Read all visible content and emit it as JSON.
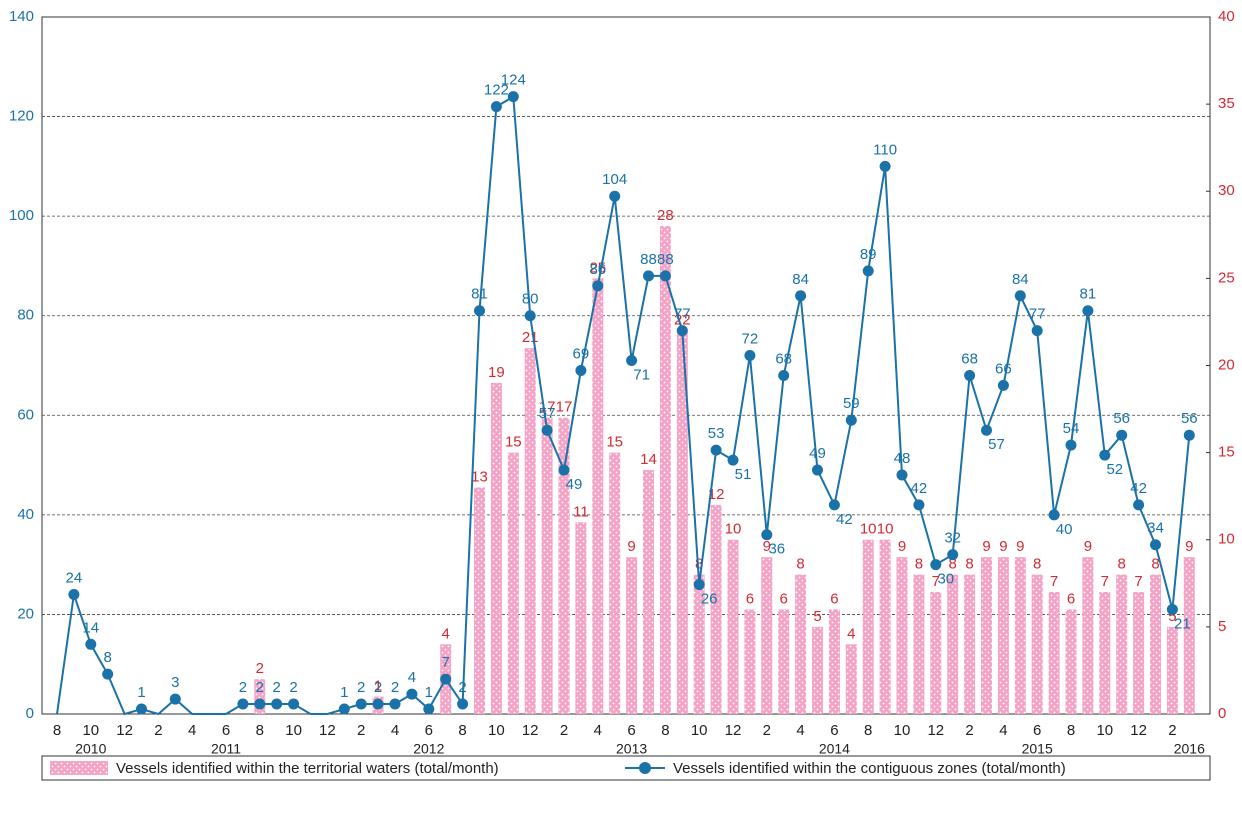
{
  "chart_data": {
    "type": "combo",
    "categories": [
      "8",
      null,
      "10",
      null,
      "12",
      null,
      "2",
      null,
      "4",
      null,
      "6",
      null,
      "8",
      null,
      "10",
      null,
      "12",
      null,
      "2",
      null,
      "4",
      null,
      "6",
      null,
      "8",
      null,
      "10",
      null,
      "12",
      null,
      "2",
      null,
      "4",
      null,
      "6",
      null,
      "8",
      null,
      "10",
      null,
      "12",
      null,
      "2",
      null,
      "4",
      null,
      "6",
      null,
      "8",
      null,
      "10",
      null,
      "12",
      null,
      "2",
      null,
      "4",
      null,
      "6",
      null,
      "8",
      null,
      "10",
      null,
      "12",
      null,
      "2",
      null
    ],
    "year_categories": [
      null,
      null,
      "2010",
      null,
      null,
      null,
      null,
      null,
      null,
      null,
      "2011",
      null,
      null,
      null,
      null,
      null,
      null,
      null,
      null,
      null,
      null,
      null,
      "2012",
      null,
      null,
      null,
      null,
      null,
      null,
      null,
      null,
      null,
      null,
      null,
      "2013",
      null,
      null,
      null,
      null,
      null,
      null,
      null,
      null,
      null,
      null,
      null,
      "2014",
      null,
      null,
      null,
      null,
      null,
      null,
      null,
      null,
      null,
      null,
      null,
      "2015",
      null,
      null,
      null,
      null,
      null,
      null,
      null,
      null,
      "2016"
    ],
    "series": [
      {
        "name": "Vessels identified within the territorial waters (total/month)",
        "type": "bar",
        "axis": "y2",
        "color": "#f4a3c6",
        "label_color": "#d42a32",
        "values": [
          0,
          0,
          0,
          0,
          0,
          0,
          0,
          0,
          0,
          0,
          0,
          0,
          2,
          0,
          0,
          0,
          0,
          0,
          0,
          1,
          0,
          0,
          0,
          4,
          0,
          13,
          19,
          15,
          21,
          17,
          17,
          11,
          25,
          15,
          9,
          14,
          28,
          22,
          8,
          12,
          10,
          6,
          9,
          6,
          8,
          5,
          6,
          4,
          10,
          10,
          9,
          8,
          7,
          8,
          8,
          9,
          9,
          9,
          8,
          7,
          6,
          9,
          7,
          8,
          7,
          8,
          5,
          9
        ]
      },
      {
        "name": "Vessels identified within the contiguous zones (total/month)",
        "type": "line",
        "color": "#1a72a8",
        "label_color": "#1a72a8",
        "values": [
          0,
          24,
          14,
          8,
          0,
          1,
          0,
          3,
          0,
          0,
          0,
          2,
          2,
          2,
          2,
          0,
          0,
          1,
          2,
          2,
          2,
          4,
          1,
          7,
          2,
          81,
          122,
          124,
          80,
          57,
          49,
          69,
          86,
          104,
          71,
          88,
          88,
          77,
          26,
          53,
          51,
          72,
          36,
          68,
          84,
          49,
          42,
          59,
          89,
          110,
          48,
          42,
          30,
          32,
          68,
          57,
          66,
          84,
          77,
          40,
          54,
          81,
          52,
          56,
          42,
          34,
          21,
          56
        ]
      }
    ],
    "ylim": [
      0,
      140
    ],
    "yticks": [
      0,
      20,
      40,
      60,
      80,
      100,
      120,
      140
    ],
    "ytick_color": "#1a72a8",
    "y2lim": [
      0,
      40
    ],
    "y2ticks": [
      0,
      5,
      10,
      15,
      20,
      25,
      30,
      35,
      40
    ],
    "y2tick_color": "#d42a32",
    "grid": true
  }
}
